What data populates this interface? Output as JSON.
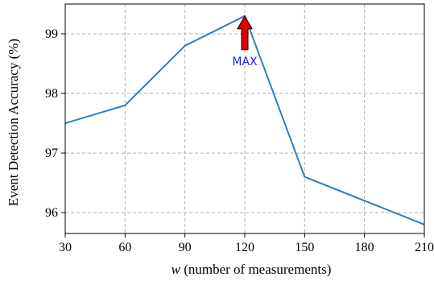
{
  "chart_data": {
    "type": "line",
    "title": "",
    "xlabel_var": "w",
    "xlabel_rest": " (number of measurements)",
    "ylabel": "Event Detection Accuracy (%)",
    "x": [
      30,
      60,
      90,
      120,
      150,
      180,
      210
    ],
    "x_ticks": [
      "30",
      "60",
      "90",
      "120",
      "150",
      "180",
      "210"
    ],
    "y_ticks": [
      "96",
      "97",
      "98",
      "99"
    ],
    "y_tick_values": [
      96,
      97,
      98,
      99
    ],
    "xlim": [
      30,
      210
    ],
    "ylim": [
      95.65,
      99.5
    ],
    "grid": true,
    "series": [
      {
        "values": [
          97.5,
          97.8,
          98.8,
          99.3,
          96.6,
          96.2,
          95.8
        ],
        "color": "#2e7ebc"
      }
    ],
    "annotations": [
      {
        "text": "MAX",
        "x": 120,
        "y": 99.3,
        "arrow_color": "#e00000",
        "text_color": "#1f1fff"
      }
    ]
  }
}
